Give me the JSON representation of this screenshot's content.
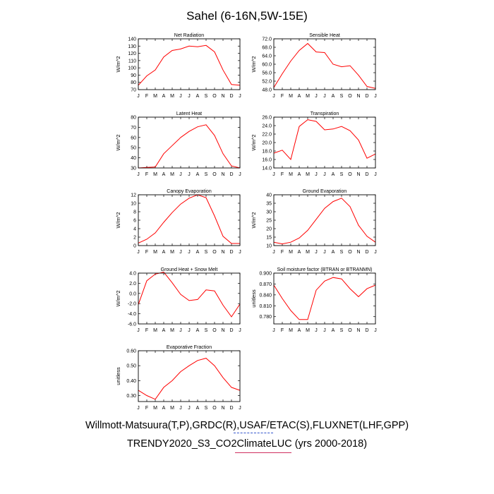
{
  "page_title": "Sahel (6-16N,5W-15E)",
  "captions": {
    "line1": "Willmott-Matsuura(T,P),GRDC(R),USAF/ETAC(S),FLUXNET(LHF,GPP)",
    "line2": "TRENDY2020_S3_CO2ClimateLUC (yrs 2000-2018)"
  },
  "colors": {
    "series": "#ff0000",
    "axes": "#000000",
    "background": "#ffffff"
  },
  "chart_data": [
    {
      "type": "line",
      "title": "Net Radiation",
      "ylabel": "W/m^2",
      "categories": [
        "J",
        "F",
        "M",
        "A",
        "M",
        "J",
        "J",
        "A",
        "S",
        "O",
        "N",
        "D",
        "J"
      ],
      "ylim": [
        70,
        140
      ],
      "yticks": [
        70,
        80,
        90,
        100,
        110,
        120,
        130,
        140
      ],
      "yticklabels": [
        "70",
        "80",
        "90",
        "100",
        "110",
        "120",
        "130",
        "140"
      ],
      "values": [
        76,
        89,
        97,
        115,
        124,
        126,
        130,
        129,
        131,
        122,
        97,
        77,
        76
      ]
    },
    {
      "type": "line",
      "title": "Sensible Heat",
      "ylabel": "W/m^2",
      "categories": [
        "J",
        "F",
        "M",
        "A",
        "M",
        "J",
        "J",
        "A",
        "S",
        "O",
        "N",
        "D",
        "J"
      ],
      "ylim": [
        48,
        72
      ],
      "yticks": [
        48,
        52,
        56,
        60,
        64,
        68,
        72
      ],
      "yticklabels": [
        "48.0",
        "52.0",
        "56.0",
        "60.0",
        "64.0",
        "68.0",
        "72.0"
      ],
      "values": [
        49,
        55.5,
        61.5,
        66.5,
        69.8,
        65.8,
        65.5,
        60,
        58.8,
        59.3,
        54.8,
        49.5,
        48.6
      ]
    },
    {
      "type": "line",
      "title": "Latent Heat",
      "ylabel": "W/m^2",
      "categories": [
        "J",
        "F",
        "M",
        "A",
        "M",
        "J",
        "J",
        "A",
        "S",
        "O",
        "N",
        "D",
        "J"
      ],
      "ylim": [
        30,
        80
      ],
      "yticks": [
        30,
        40,
        50,
        60,
        70,
        80
      ],
      "yticklabels": [
        "30",
        "40",
        "50",
        "60",
        "70",
        "80"
      ],
      "values": [
        30,
        30.5,
        31,
        44,
        52,
        60,
        66,
        70.5,
        72.5,
        62,
        44,
        32,
        30
      ]
    },
    {
      "type": "line",
      "title": "Transpiration",
      "ylabel": "W/m^2",
      "categories": [
        "J",
        "F",
        "M",
        "A",
        "M",
        "J",
        "J",
        "A",
        "S",
        "O",
        "N",
        "D",
        "J"
      ],
      "ylim": [
        14,
        26
      ],
      "yticks": [
        14,
        16,
        18,
        20,
        22,
        24,
        26
      ],
      "yticklabels": [
        "14.0",
        "16.0",
        "18.0",
        "20.0",
        "22.0",
        "24.0",
        "26.0"
      ],
      "values": [
        17.5,
        18.2,
        16,
        23.8,
        25.4,
        25,
        23,
        23.2,
        23.8,
        22.8,
        20.6,
        16.3,
        17.3
      ]
    },
    {
      "type": "line",
      "title": "Canopy Evaporation",
      "ylabel": "W/m^2",
      "categories": [
        "J",
        "F",
        "M",
        "A",
        "M",
        "J",
        "J",
        "A",
        "S",
        "O",
        "N",
        "D",
        "J"
      ],
      "ylim": [
        0,
        12
      ],
      "yticks": [
        0,
        2,
        4,
        6,
        8,
        10,
        12
      ],
      "yticklabels": [
        "0",
        "2",
        "4",
        "6",
        "8",
        "10",
        "12"
      ],
      "values": [
        0.6,
        1.5,
        3,
        5.5,
        7.8,
        9.8,
        11.2,
        12,
        11.3,
        7,
        2.2,
        0.5,
        0.5
      ]
    },
    {
      "type": "line",
      "title": "Ground Evaporation",
      "ylabel": "W/m^2",
      "categories": [
        "J",
        "F",
        "M",
        "A",
        "M",
        "J",
        "J",
        "A",
        "S",
        "O",
        "N",
        "D",
        "J"
      ],
      "ylim": [
        10,
        40
      ],
      "yticks": [
        10,
        15,
        20,
        25,
        30,
        35,
        40
      ],
      "yticklabels": [
        "10",
        "15",
        "20",
        "25",
        "30",
        "35",
        "40"
      ],
      "values": [
        12,
        11,
        12,
        14.5,
        19,
        25.5,
        32,
        36,
        38,
        33,
        22,
        15.5,
        12
      ]
    },
    {
      "type": "line",
      "title": "Ground Heat + Snow Melt",
      "ylabel": "W/m^2",
      "categories": [
        "J",
        "F",
        "M",
        "A",
        "M",
        "J",
        "J",
        "A",
        "S",
        "O",
        "N",
        "D",
        "J"
      ],
      "ylim": [
        -6,
        4
      ],
      "yticks": [
        -6,
        -4,
        -2,
        0,
        2,
        4
      ],
      "yticklabels": [
        "-6.0",
        "-4.0",
        "-2.0",
        "0.0",
        "2.0",
        "4.0"
      ],
      "values": [
        -2.2,
        2.5,
        3.8,
        4.2,
        2.1,
        -0.2,
        -1.4,
        -1.2,
        0.7,
        0.5,
        -2.3,
        -4.6,
        -2.1
      ]
    },
    {
      "type": "line",
      "title": "Soil moisture factor (BTRAN or BTRANMN)",
      "ylabel": "unitless",
      "categories": [
        "J",
        "F",
        "M",
        "A",
        "M",
        "J",
        "J",
        "A",
        "S",
        "O",
        "N",
        "D",
        "J"
      ],
      "ylim": [
        0.76,
        0.9
      ],
      "yticks": [
        0.78,
        0.81,
        0.84,
        0.87,
        0.9
      ],
      "yticklabels": [
        "0.780",
        "0.810",
        "0.840",
        "0.870",
        "0.900"
      ],
      "values": [
        0.867,
        0.83,
        0.797,
        0.772,
        0.772,
        0.853,
        0.878,
        0.888,
        0.884,
        0.857,
        0.835,
        0.857,
        0.867
      ]
    },
    {
      "type": "line",
      "title": "Evaporative Fraction",
      "ylabel": "unitless",
      "categories": [
        "J",
        "F",
        "M",
        "A",
        "M",
        "J",
        "J",
        "A",
        "S",
        "O",
        "N",
        "D",
        "J"
      ],
      "ylim": [
        0.26,
        0.6
      ],
      "yticks": [
        0.3,
        0.4,
        0.5,
        0.6
      ],
      "yticklabels": [
        "0.30",
        "0.40",
        "0.50",
        "0.60"
      ],
      "values": [
        0.335,
        0.3,
        0.275,
        0.355,
        0.4,
        0.46,
        0.5,
        0.535,
        0.55,
        0.5,
        0.42,
        0.355,
        0.335
      ]
    }
  ]
}
